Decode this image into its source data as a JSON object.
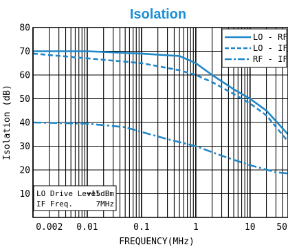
{
  "chart_data": {
    "type": "line",
    "title": "Isolation",
    "xlabel": "FREQUENCY(MHz)",
    "ylabel": "Isolation (dB)",
    "x_scale": "log",
    "xlim": [
      0.001,
      50
    ],
    "ylim": [
      0,
      80
    ],
    "grid": true,
    "legend_position": "top-right",
    "x_tick_labels": [
      {
        "value": 0.002,
        "label": "0.002"
      },
      {
        "value": 0.01,
        "label": "0.01"
      },
      {
        "value": 0.1,
        "label": "0.1"
      },
      {
        "value": 1,
        "label": "1"
      },
      {
        "value": 10,
        "label": "10"
      },
      {
        "value": 50,
        "label": "50"
      }
    ],
    "y_ticks": [
      10,
      20,
      30,
      40,
      50,
      60,
      70,
      80
    ],
    "series": [
      {
        "name": "LO - RF",
        "style": "solid",
        "color": "#1f87c8",
        "x": [
          0.001,
          0.01,
          0.1,
          0.5,
          1,
          2,
          5,
          10,
          20,
          50
        ],
        "y": [
          70,
          70,
          69,
          68,
          65,
          60,
          54,
          50,
          45,
          35
        ]
      },
      {
        "name": "LO - IF",
        "style": "dashed",
        "color": "#1f87c8",
        "x": [
          0.001,
          0.01,
          0.1,
          0.5,
          1,
          2,
          5,
          10,
          20,
          50
        ],
        "y": [
          69,
          67,
          65,
          62,
          60,
          57,
          52,
          48,
          43,
          32
        ]
      },
      {
        "name": "RF - IF",
        "style": "dashdot",
        "color": "#1f87c8",
        "x": [
          0.001,
          0.01,
          0.05,
          0.1,
          0.3,
          1,
          3,
          10,
          30,
          50
        ],
        "y": [
          40,
          39.5,
          38,
          36,
          33,
          30,
          26,
          22,
          19,
          18.5
        ]
      }
    ],
    "annotation": {
      "line1_label": "LO Drive Level",
      "line1_value": "+15dBm",
      "line2_label": "IF Freq.",
      "line2_value": "7MHz"
    }
  }
}
